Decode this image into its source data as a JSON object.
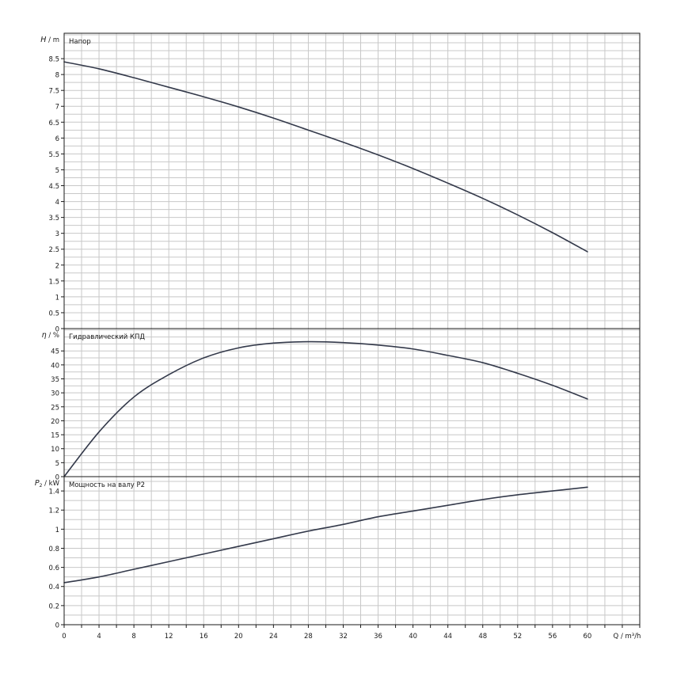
{
  "chart_data": [
    {
      "type": "line",
      "panel_label": "Напор",
      "y_axis_label": "H / m",
      "y_symbol": "H",
      "y_unit": "m",
      "ylim": [
        0,
        9.3
      ],
      "yticks": [
        0,
        0.5,
        1,
        1.5,
        2,
        2.5,
        3,
        3.5,
        4,
        4.5,
        5,
        5.5,
        6,
        6.5,
        7,
        7.5,
        8,
        8.5
      ],
      "ytick_labels": [
        "0",
        "0.5",
        "1",
        "1.5",
        "2",
        "2.5",
        "3",
        "3.5",
        "4",
        "4.5",
        "5",
        "5.5",
        "6",
        "6.5",
        "7",
        "7.5",
        "8",
        "8.5"
      ],
      "grid": true,
      "x": [
        0,
        4,
        8,
        12,
        16,
        20,
        24,
        28,
        32,
        36,
        40,
        44,
        48,
        52,
        56,
        60
      ],
      "y": [
        8.4,
        8.18,
        7.9,
        7.6,
        7.3,
        6.98,
        6.63,
        6.25,
        5.87,
        5.47,
        5.04,
        4.58,
        4.1,
        3.58,
        3.02,
        2.42
      ]
    },
    {
      "type": "line",
      "panel_label": "Гидравлический КПД",
      "y_axis_label": "η / %",
      "y_symbol": "η",
      "y_unit": "%",
      "ylim": [
        0,
        53
      ],
      "yticks": [
        0,
        5,
        10,
        15,
        20,
        25,
        30,
        35,
        40,
        45
      ],
      "ytick_labels": [
        "0",
        "5",
        "10",
        "15",
        "20",
        "25",
        "30",
        "35",
        "40",
        "45"
      ],
      "grid": true,
      "x": [
        0,
        4,
        8,
        12,
        16,
        20,
        24,
        28,
        32,
        36,
        40,
        44,
        48,
        52,
        56,
        60
      ],
      "y": [
        0,
        16,
        28.5,
        36.5,
        42.5,
        46.1,
        47.8,
        48.3,
        48,
        47.1,
        45.7,
        43.4,
        40.8,
        37,
        32.7,
        27.8
      ]
    },
    {
      "type": "line",
      "panel_label": "Мощность на валу P2",
      "y_axis_label": "P2 / kW",
      "y_symbol": "P",
      "y_subscript": "2",
      "y_unit": "kW",
      "ylim": [
        0,
        1.55
      ],
      "yticks": [
        0,
        0.2,
        0.4,
        0.6,
        0.8,
        1,
        1.2,
        1.4
      ],
      "ytick_labels": [
        "0",
        "0.2",
        "0.4",
        "0.6",
        "0.8",
        "1",
        "1.2",
        "1.4"
      ],
      "grid": true,
      "x": [
        0,
        4,
        8,
        12,
        16,
        20,
        24,
        28,
        32,
        36,
        40,
        44,
        48,
        52,
        56,
        60
      ],
      "y": [
        0.44,
        0.5,
        0.58,
        0.66,
        0.74,
        0.82,
        0.9,
        0.98,
        1.05,
        1.13,
        1.19,
        1.25,
        1.31,
        1.36,
        1.4,
        1.44
      ]
    }
  ],
  "x_axis": {
    "label": "Q / m³/h",
    "symbol": "Q",
    "unit": "m³/h",
    "xlim": [
      0,
      66
    ],
    "ticks": [
      0,
      4,
      8,
      12,
      16,
      20,
      24,
      28,
      32,
      36,
      40,
      44,
      48,
      52,
      56,
      60
    ],
    "tick_labels": [
      "0",
      "4",
      "8",
      "12",
      "16",
      "20",
      "24",
      "28",
      "32",
      "36",
      "40",
      "44",
      "48",
      "52",
      "56",
      "60"
    ]
  },
  "colors": {
    "curve": "#33394a",
    "grid": "#c8c8c8",
    "frame": "#1a1a1a",
    "background": "#ffffff"
  }
}
